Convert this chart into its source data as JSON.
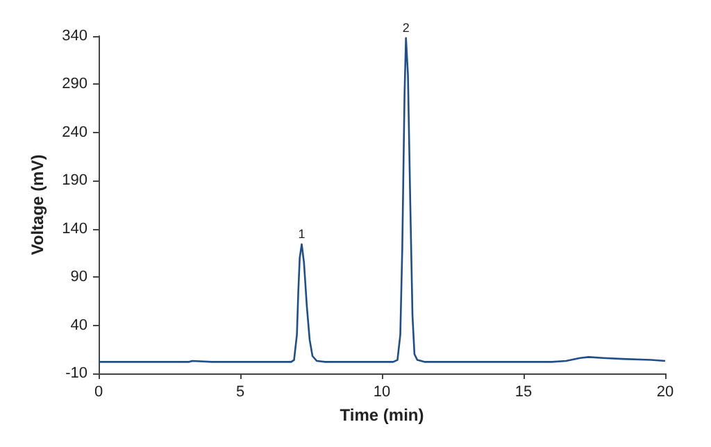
{
  "chart_data": {
    "type": "line",
    "xlabel": "Time (min)",
    "ylabel": "Voltage (mV)",
    "xlim": [
      0,
      20
    ],
    "xticks": [
      0,
      5,
      10,
      15,
      20
    ],
    "ylim": [
      -10,
      340
    ],
    "yticks": [
      -10,
      40,
      90,
      140,
      190,
      240,
      290,
      340
    ],
    "grid": false,
    "marker": "none",
    "line_style": "solid",
    "series": [
      {
        "color": "#1f4e8c",
        "x": [
          0,
          2,
          3.2,
          3.3,
          4,
          5,
          6,
          6.8,
          6.9,
          7.0,
          7.05,
          7.1,
          7.17,
          7.25,
          7.35,
          7.45,
          7.55,
          7.7,
          8,
          9,
          10,
          10.4,
          10.55,
          10.65,
          10.72,
          10.8,
          10.85,
          10.92,
          11.0,
          11.08,
          11.15,
          11.25,
          11.5,
          12,
          13,
          14,
          15,
          16,
          16.5,
          17,
          17.3,
          17.8,
          18.5,
          19.5,
          20
        ],
        "values": [
          2,
          2,
          2,
          3,
          2,
          2,
          2,
          2,
          4,
          30,
          75,
          110,
          124,
          105,
          60,
          25,
          8,
          3,
          2,
          2,
          2,
          2,
          4,
          30,
          120,
          280,
          338,
          300,
          170,
          50,
          10,
          4,
          2,
          2,
          2,
          2,
          2,
          2,
          3,
          6,
          7,
          6,
          5,
          4,
          3
        ]
      }
    ],
    "annotations": [
      {
        "text": "1",
        "x": 7.17,
        "y": 124
      },
      {
        "text": "2",
        "x": 10.85,
        "y": 338
      }
    ]
  }
}
